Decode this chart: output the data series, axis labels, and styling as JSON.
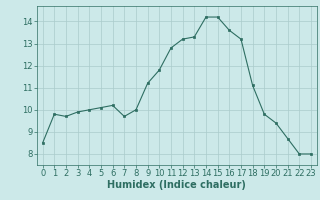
{
  "x": [
    0,
    1,
    2,
    3,
    4,
    5,
    6,
    7,
    8,
    9,
    10,
    11,
    12,
    13,
    14,
    15,
    16,
    17,
    18,
    19,
    20,
    21,
    22,
    23
  ],
  "y": [
    8.5,
    9.8,
    9.7,
    9.9,
    10.0,
    10.1,
    10.2,
    9.7,
    10.0,
    11.2,
    11.8,
    12.8,
    13.2,
    13.3,
    14.2,
    14.2,
    13.6,
    13.2,
    11.1,
    9.8,
    9.4,
    8.7,
    8.0,
    8.0
  ],
  "xlabel": "Humidex (Indice chaleur)",
  "ylim": [
    7.5,
    14.7
  ],
  "xlim": [
    -0.5,
    23.5
  ],
  "yticks": [
    8,
    9,
    10,
    11,
    12,
    13,
    14
  ],
  "xticks": [
    0,
    1,
    2,
    3,
    4,
    5,
    6,
    7,
    8,
    9,
    10,
    11,
    12,
    13,
    14,
    15,
    16,
    17,
    18,
    19,
    20,
    21,
    22,
    23
  ],
  "line_color": "#2e6e62",
  "marker_color": "#2e6e62",
  "bg_color": "#cce9e9",
  "grid_color": "#aacccc",
  "tick_label_fontsize": 6.0,
  "xlabel_fontsize": 7.0
}
